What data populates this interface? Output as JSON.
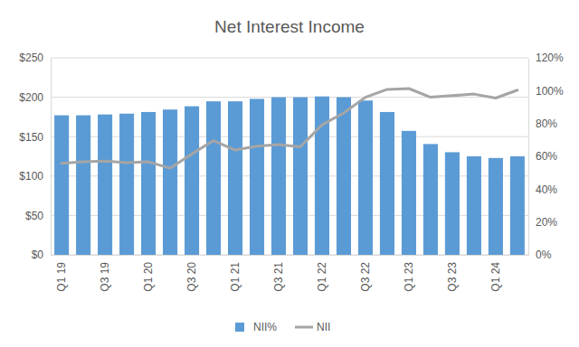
{
  "chart_data": {
    "type": "bar",
    "title": "Net Interest Income",
    "categories": [
      "Q1 19",
      null,
      "Q3 19",
      null,
      "Q1 20",
      null,
      "Q3 20",
      null,
      "Q1 21",
      null,
      "Q3 21",
      null,
      "Q1 22",
      null,
      "Q3 22",
      null,
      "Q1 23",
      null,
      "Q3 23",
      null,
      "Q1 24",
      null
    ],
    "series": [
      {
        "name": "NII%",
        "type": "bar",
        "color": "#5B9BD5",
        "axis": "y2",
        "values": [
          85,
          85,
          85.5,
          86,
          87,
          88.5,
          90.5,
          93.5,
          93.5,
          95,
          96,
          96,
          96.5,
          96,
          94,
          87,
          75.5,
          67.5,
          62.5,
          60,
          59,
          60
        ]
      },
      {
        "name": "NII",
        "type": "line",
        "color": "#A5A5A5",
        "values": [
          116,
          118,
          119,
          117,
          118,
          110,
          128,
          145,
          133,
          138,
          140,
          137,
          165,
          180,
          200,
          210,
          211,
          200,
          202,
          204,
          199,
          209
        ]
      }
    ],
    "ylim": [
      0,
      250
    ],
    "yticks": [
      {
        "value": 0,
        "label": "$0"
      },
      {
        "value": 50,
        "label": "$50"
      },
      {
        "value": 100,
        "label": "$100"
      },
      {
        "value": 150,
        "label": "$150"
      },
      {
        "value": 200,
        "label": "$200"
      },
      {
        "value": 250,
        "label": "$250"
      }
    ],
    "y2lim": [
      0,
      120
    ],
    "y2ticks": [
      {
        "value": 0,
        "label": "0%"
      },
      {
        "value": 20,
        "label": "20%"
      },
      {
        "value": 40,
        "label": "40%"
      },
      {
        "value": 60,
        "label": "60%"
      },
      {
        "value": 80,
        "label": "80%"
      },
      {
        "value": 100,
        "label": "100%"
      },
      {
        "value": 120,
        "label": "120%"
      }
    ],
    "grid": true,
    "legend": "bottom"
  }
}
